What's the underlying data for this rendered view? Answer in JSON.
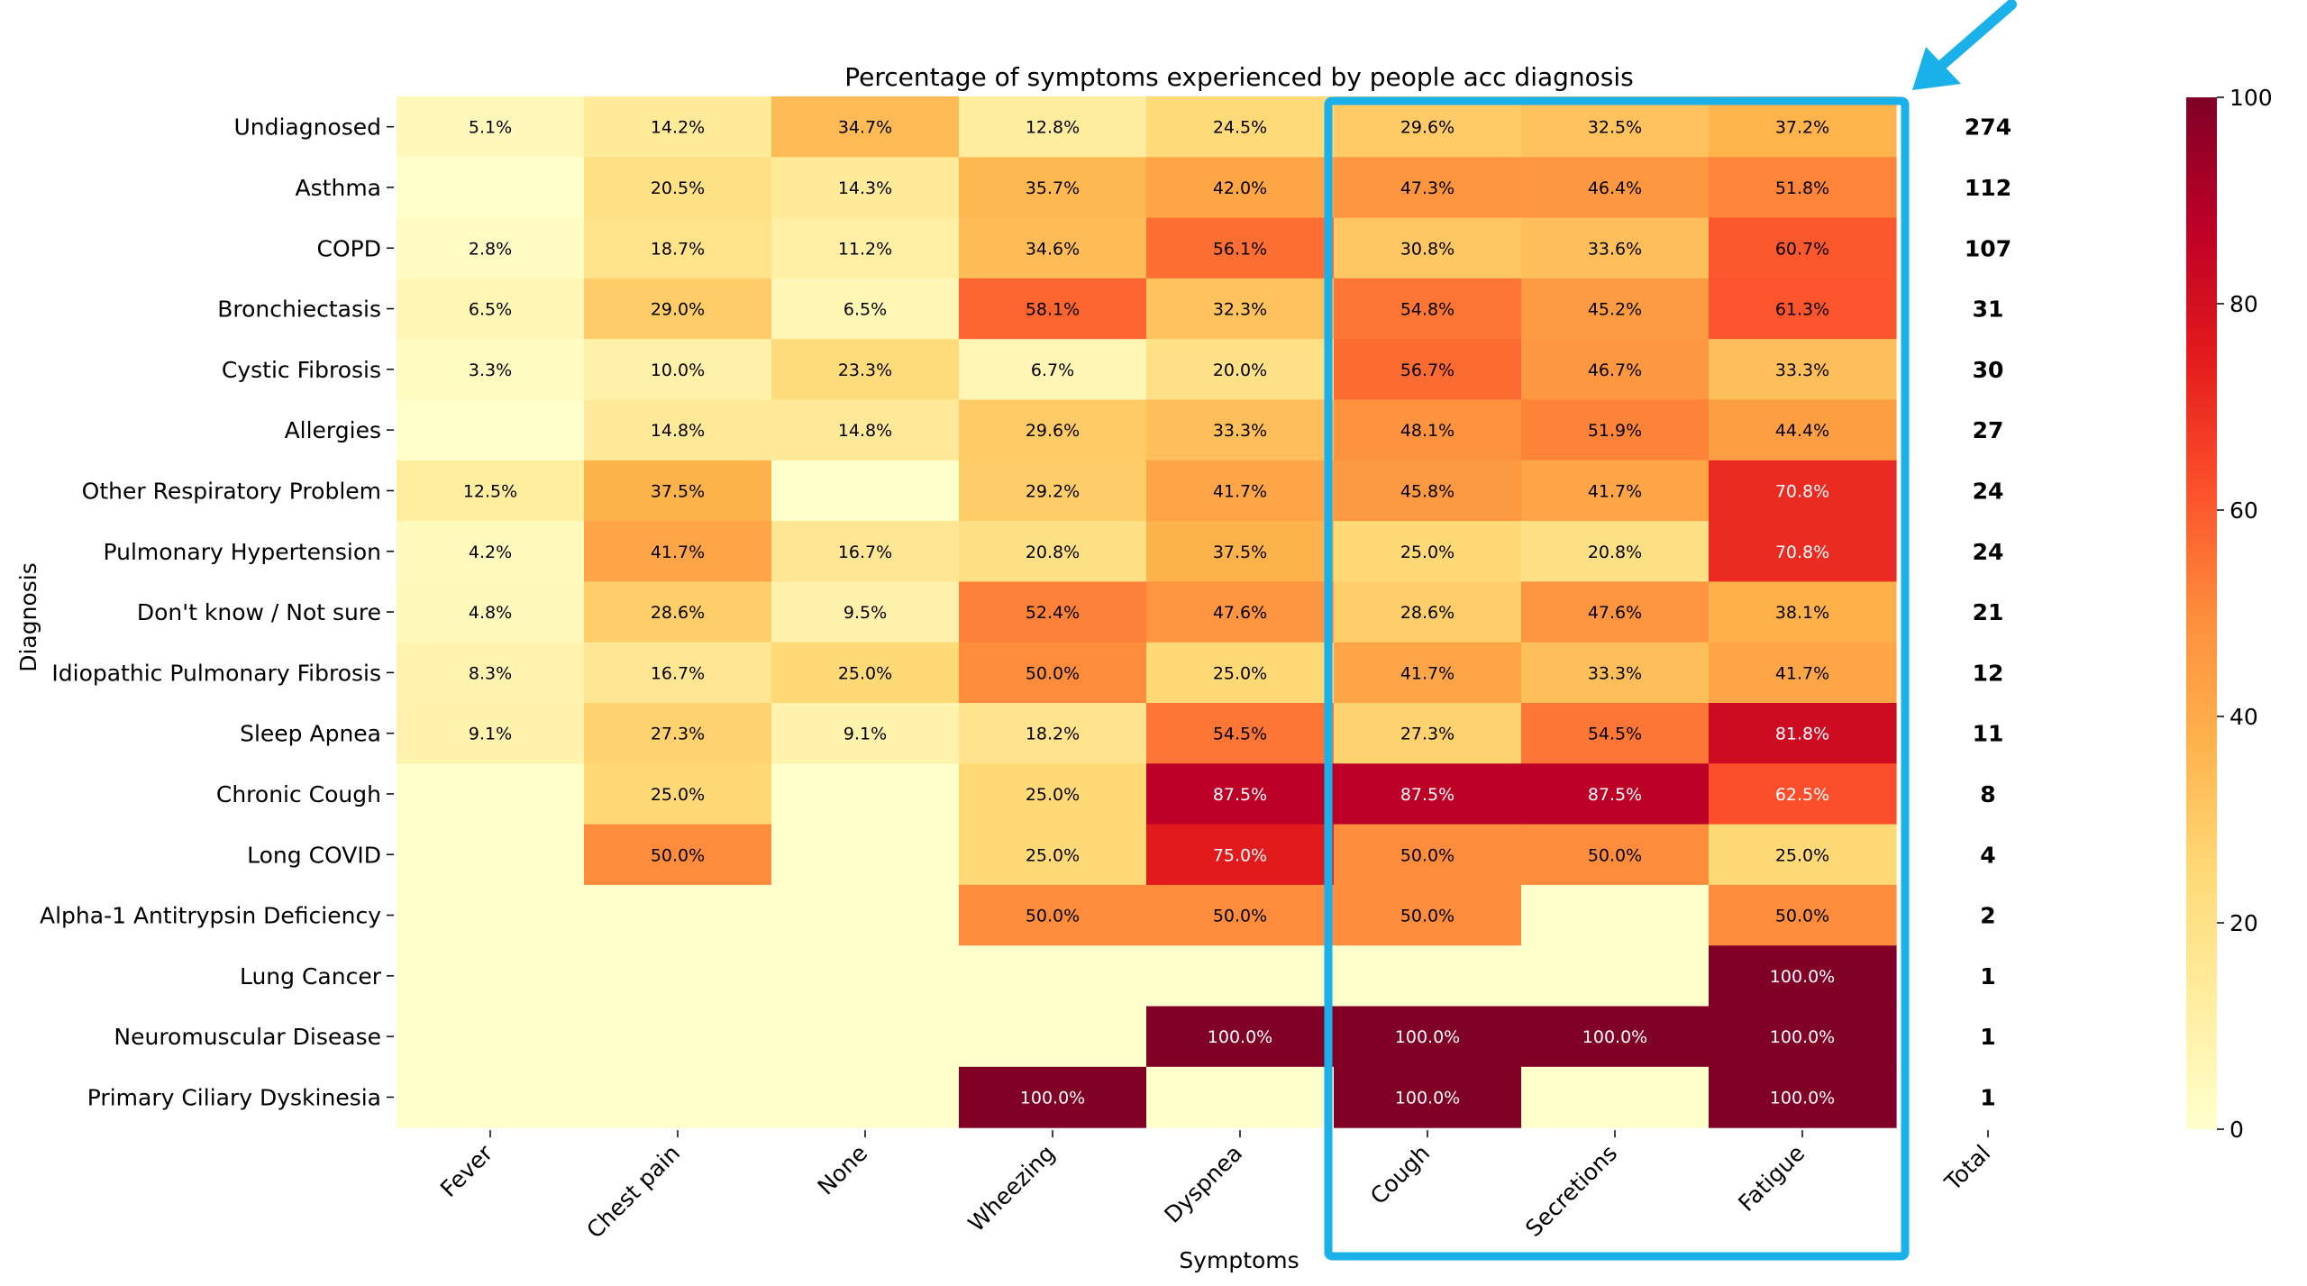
{
  "chart_data": {
    "type": "heatmap",
    "title": "Percentage of symptoms experienced by people acc diagnosis",
    "xlabel": "Symptoms",
    "ylabel": "Diagnosis",
    "columns": [
      "Fever",
      "Chest pain",
      "None",
      "Wheezing",
      "Dyspnea",
      "Cough",
      "Secretions",
      "Fatigue"
    ],
    "rows": [
      "Undiagnosed",
      "Asthma",
      "COPD",
      "Bronchiectasis",
      "Cystic Fibrosis",
      "Allergies",
      "Other Respiratory Problem",
      "Pulmonary Hypertension",
      "Don't know / Not sure",
      "Idiopathic Pulmonary Fibrosis",
      "Sleep Apnea",
      "Chronic Cough",
      "Long COVID",
      "Alpha-1 Antitrypsin Deficiency",
      "Lung Cancer",
      "Neuromuscular Disease",
      "Primary Ciliary Dyskinesia"
    ],
    "values": [
      [
        5.1,
        14.2,
        34.7,
        12.8,
        24.5,
        29.6,
        32.5,
        37.2
      ],
      [
        0,
        20.5,
        14.3,
        35.7,
        42.0,
        47.3,
        46.4,
        51.8
      ],
      [
        2.8,
        18.7,
        11.2,
        34.6,
        56.1,
        30.8,
        33.6,
        60.7
      ],
      [
        6.5,
        29.0,
        6.5,
        58.1,
        32.3,
        54.8,
        45.2,
        61.3
      ],
      [
        3.3,
        10.0,
        23.3,
        6.7,
        20.0,
        56.7,
        46.7,
        33.3
      ],
      [
        0,
        14.8,
        14.8,
        29.6,
        33.3,
        48.1,
        51.9,
        44.4
      ],
      [
        12.5,
        37.5,
        0,
        29.2,
        41.7,
        45.8,
        41.7,
        70.8
      ],
      [
        4.2,
        41.7,
        16.7,
        20.8,
        37.5,
        25.0,
        20.8,
        70.8
      ],
      [
        4.8,
        28.6,
        9.5,
        52.4,
        47.6,
        28.6,
        47.6,
        38.1
      ],
      [
        8.3,
        16.7,
        25.0,
        50.0,
        25.0,
        41.7,
        33.3,
        41.7
      ],
      [
        9.1,
        27.3,
        9.1,
        18.2,
        54.5,
        27.3,
        54.5,
        81.8
      ],
      [
        0,
        25.0,
        0,
        25.0,
        87.5,
        87.5,
        87.5,
        62.5
      ],
      [
        0,
        50.0,
        0,
        25.0,
        75.0,
        50.0,
        50.0,
        25.0
      ],
      [
        0,
        0,
        0,
        50.0,
        50.0,
        50.0,
        0,
        50.0
      ],
      [
        0,
        0,
        0,
        0,
        0,
        0,
        0,
        100.0
      ],
      [
        0,
        0,
        0,
        0,
        100.0,
        100.0,
        100.0,
        100.0
      ],
      [
        0,
        0,
        0,
        100.0,
        0,
        100.0,
        0,
        100.0
      ]
    ],
    "unit_suffix": "%",
    "total_label": "Total",
    "totals": [
      274,
      112,
      107,
      31,
      30,
      27,
      24,
      24,
      21,
      12,
      11,
      8,
      4,
      2,
      1,
      1,
      1
    ],
    "colorbar": {
      "colormap": "YlOrRd",
      "range": [
        0,
        100
      ],
      "ticks": [
        0,
        20,
        40,
        60,
        80,
        100
      ]
    },
    "highlight": {
      "columns": [
        "Cough",
        "Secretions",
        "Fatigue"
      ],
      "color": "#1ab0ea",
      "arrow": "top-right, pointing down-left"
    }
  }
}
